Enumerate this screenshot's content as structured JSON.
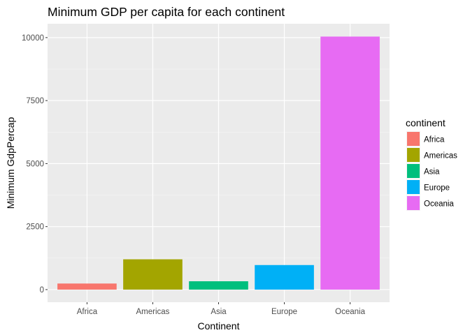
{
  "chart_data": {
    "type": "bar",
    "title": "Minimum GDP per capita for each continent",
    "xlabel": "Continent",
    "ylabel": "Minimum GdpPercap",
    "categories": [
      "Africa",
      "Americas",
      "Asia",
      "Europe",
      "Oceania"
    ],
    "values": [
      241,
      1202,
      331,
      974,
      10040
    ],
    "colors": [
      "#F8766D",
      "#A3A500",
      "#00BF7D",
      "#00B0F6",
      "#E76BF3"
    ],
    "ylim": [
      -500,
      10550
    ],
    "yticks": [
      0,
      2500,
      5000,
      7500,
      10000
    ],
    "ytick_labels": [
      "0",
      "2500",
      "5000",
      "7500",
      "10000"
    ],
    "grid": true,
    "panel_background": "#EBEBEB",
    "legend": {
      "title": "continent",
      "position": "right",
      "items": [
        "Africa",
        "Americas",
        "Asia",
        "Europe",
        "Oceania"
      ]
    }
  }
}
